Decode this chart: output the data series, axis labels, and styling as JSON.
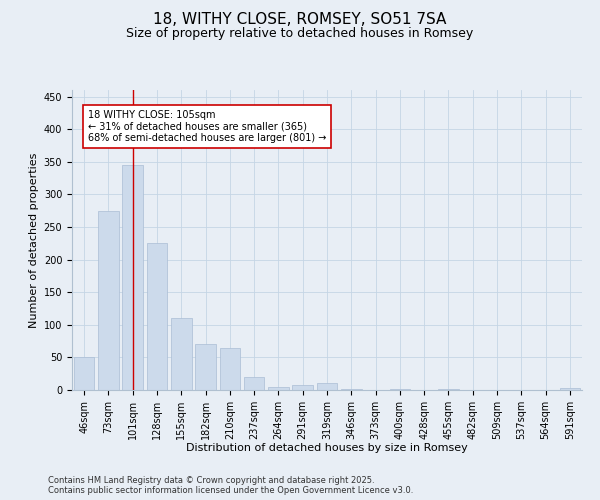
{
  "title": "18, WITHY CLOSE, ROMSEY, SO51 7SA",
  "subtitle": "Size of property relative to detached houses in Romsey",
  "xlabel": "Distribution of detached houses by size in Romsey",
  "ylabel": "Number of detached properties",
  "categories": [
    "46sqm",
    "73sqm",
    "101sqm",
    "128sqm",
    "155sqm",
    "182sqm",
    "210sqm",
    "237sqm",
    "264sqm",
    "291sqm",
    "319sqm",
    "346sqm",
    "373sqm",
    "400sqm",
    "428sqm",
    "455sqm",
    "482sqm",
    "509sqm",
    "537sqm",
    "564sqm",
    "591sqm"
  ],
  "values": [
    50,
    275,
    345,
    225,
    110,
    70,
    64,
    20,
    5,
    7,
    10,
    1,
    0,
    2,
    0,
    1,
    0,
    0,
    0,
    0,
    3
  ],
  "bar_color": "#ccdaeb",
  "bar_edge_color": "#aabdd4",
  "grid_color": "#c5d5e5",
  "background_color": "#e8eef5",
  "vline_x": 2,
  "vline_color": "#cc0000",
  "annotation_text": "18 WITHY CLOSE: 105sqm\n← 31% of detached houses are smaller (365)\n68% of semi-detached houses are larger (801) →",
  "annotation_box_facecolor": "#ffffff",
  "annotation_box_edgecolor": "#cc0000",
  "ylim": [
    0,
    460
  ],
  "yticks": [
    0,
    50,
    100,
    150,
    200,
    250,
    300,
    350,
    400,
    450
  ],
  "footer_text": "Contains HM Land Registry data © Crown copyright and database right 2025.\nContains public sector information licensed under the Open Government Licence v3.0.",
  "title_fontsize": 11,
  "subtitle_fontsize": 9,
  "axis_label_fontsize": 8,
  "tick_fontsize": 7,
  "annotation_fontsize": 7,
  "footer_fontsize": 6
}
